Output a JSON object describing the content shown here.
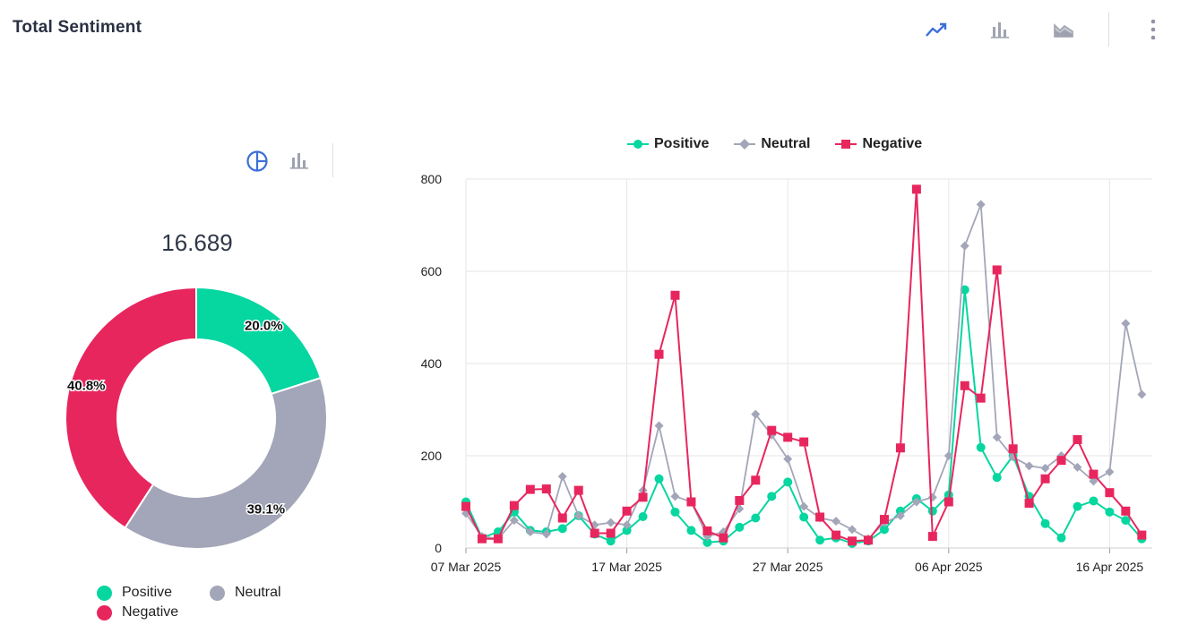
{
  "header": {
    "title": "Total Sentiment"
  },
  "toolbar": {
    "icons": [
      "trend-line-icon",
      "bar-chart-icon",
      "area-chart-icon",
      "more-vertical-icon"
    ],
    "active": "trend-line-icon"
  },
  "colors": {
    "positive": "#06d6a0",
    "neutral": "#a3a6b8",
    "negative": "#e8265e",
    "accent": "#3b6fd8"
  },
  "donut": {
    "total": "16.689",
    "mini_toolbar": {
      "icons": [
        "pie-chart-icon",
        "bar-chart-icon"
      ],
      "active": "pie-chart-icon"
    }
  },
  "chart_data": [
    {
      "type": "pie",
      "variant": "donut",
      "labels": [
        "Positive",
        "Neutral",
        "Negative"
      ],
      "values": [
        20.0,
        39.1,
        40.8
      ],
      "value_labels": [
        "20.0%",
        "39.1%",
        "40.8%"
      ],
      "legend": "bottom"
    },
    {
      "type": "line",
      "x_start": "07 Mar 2025",
      "x_end": "19 Apr 2025",
      "x_tick_labels": [
        "07 Mar 2025",
        "17 Mar 2025",
        "27 Mar 2025",
        "06 Apr 2025",
        "16 Apr 2025"
      ],
      "y_ticks": [
        0,
        200,
        400,
        600,
        800
      ],
      "ylim": [
        0,
        800
      ],
      "grid": true,
      "legend": "top-center",
      "series": [
        {
          "name": "Positive",
          "marker": "circle",
          "values": [
            100,
            22,
            35,
            78,
            38,
            35,
            42,
            70,
            30,
            15,
            38,
            68,
            150,
            78,
            38,
            12,
            15,
            45,
            65,
            112,
            143,
            67,
            17,
            22,
            10,
            15,
            40,
            80,
            107,
            80,
            115,
            560,
            218,
            153,
            200,
            112,
            53,
            22,
            90,
            102,
            78,
            60,
            20
          ]
        },
        {
          "name": "Neutral",
          "marker": "diamond",
          "values": [
            75,
            25,
            20,
            60,
            35,
            30,
            155,
            70,
            50,
            55,
            50,
            125,
            265,
            112,
            100,
            25,
            35,
            85,
            290,
            245,
            193,
            90,
            65,
            58,
            40,
            20,
            55,
            70,
            100,
            110,
            200,
            655,
            745,
            240,
            197,
            178,
            173,
            200,
            175,
            145,
            165,
            487,
            333
          ]
        },
        {
          "name": "Negative",
          "marker": "square",
          "values": [
            90,
            20,
            20,
            92,
            127,
            128,
            65,
            125,
            32,
            32,
            80,
            110,
            420,
            548,
            100,
            37,
            22,
            103,
            147,
            255,
            240,
            230,
            67,
            28,
            15,
            17,
            62,
            217,
            778,
            25,
            100,
            352,
            325,
            603,
            215,
            97,
            150,
            190,
            235,
            160,
            120,
            80,
            28
          ]
        }
      ]
    }
  ]
}
